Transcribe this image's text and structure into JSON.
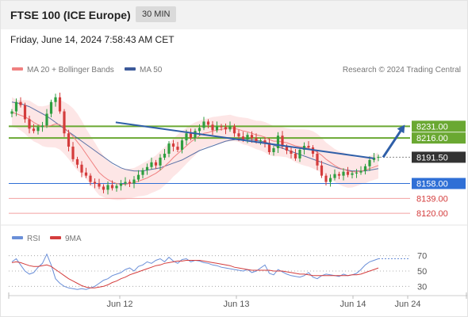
{
  "header": {
    "title": "FTSE 100 (ICE Europe)",
    "interval": "30 MIN"
  },
  "timestamp": "Friday, June 14, 2024 7:58:43 AM CET",
  "legend": {
    "ma20_label": "MA 20 + Bollinger Bands",
    "ma50_label": "MA 50",
    "credit": "Research © 2024 Trading Central",
    "rsi_label": "RSI",
    "ma9_label": "9MA"
  },
  "colors": {
    "price_up": "#2e9e3f",
    "price_down": "#d43c3c",
    "ma20": "#f08080",
    "ma50": "#3c5a9a",
    "bollinger_fill": "#fde2e2",
    "resistance": "#6aa832",
    "support": "#2f6fd6",
    "support_minor": "#f2a0a0",
    "current_price_bg": "#333333",
    "trend_arrow": "#2f5fa8",
    "rsi_line": "#6a8fd8",
    "rsi_ma": "#d43c3c"
  },
  "chart_data": [
    {
      "type": "line",
      "series_kind": "candlestick-price",
      "x_ticks": [
        "Jun 12",
        "Jun 13",
        "Jun 14",
        "Jun 24"
      ],
      "ylim": [
        8110,
        8290
      ],
      "levels": [
        {
          "value": 8231.0,
          "label": "8231.00",
          "kind": "resistance"
        },
        {
          "value": 8216.0,
          "label": "8216.00",
          "kind": "resistance"
        },
        {
          "value": 8191.5,
          "label": "8191.50",
          "kind": "current"
        },
        {
          "value": 8158.0,
          "label": "8158.00",
          "kind": "support"
        },
        {
          "value": 8139.0,
          "label": "8139.00",
          "kind": "support-minor"
        },
        {
          "value": 8120.0,
          "label": "8120.00",
          "kind": "support-minor"
        }
      ],
      "series": [
        {
          "name": "Price",
          "values": [
            8250,
            8262,
            8258,
            8240,
            8228,
            8225,
            8230,
            8232,
            8247,
            8262,
            8268,
            8250,
            8222,
            8205,
            8189,
            8182,
            8172,
            8168,
            8160,
            8158,
            8154,
            8150,
            8156,
            8152,
            8155,
            8158,
            8160,
            8158,
            8163,
            8169,
            8175,
            8179,
            8185,
            8181,
            8191,
            8196,
            8209,
            8205,
            8201,
            8213,
            8222,
            8216,
            8225,
            8229,
            8237,
            8233,
            8226,
            8231,
            8230,
            8227,
            8231,
            8222,
            8218,
            8214,
            8220,
            8216,
            8212,
            8213,
            8210,
            8198,
            8203,
            8219,
            8205,
            8200,
            8196,
            8190,
            8201,
            8206,
            8204,
            8196,
            8181,
            8168,
            8160,
            8165,
            8170,
            8168,
            8173,
            8169,
            8171,
            8172,
            8174,
            8180,
            8188,
            8191,
            8192
          ]
        },
        {
          "name": "MA 20",
          "values": [
            8249,
            8247,
            8245,
            8243,
            8240,
            8236,
            8233,
            8231,
            8231,
            8232,
            8234,
            8233,
            8229,
            8224,
            8218,
            8211,
            8204,
            8196,
            8188,
            8180,
            8172,
            8167,
            8163,
            8160,
            8158,
            8157,
            8157,
            8158,
            8159,
            8161,
            8163,
            8165,
            8168,
            8171,
            8175,
            8180,
            8185,
            8191,
            8196,
            8201,
            8206,
            8211,
            8215,
            8219,
            8222,
            8223,
            8225,
            8226,
            8227,
            8228,
            8229,
            8228,
            8227,
            8225,
            8224,
            8222,
            8220,
            8219,
            8217,
            8214,
            8212,
            8212,
            8211,
            8210,
            8208,
            8206,
            8205,
            8204,
            8203,
            8201,
            8198,
            8194,
            8189,
            8185,
            8181,
            8178,
            8176,
            8174,
            8173,
            8173,
            8174,
            8175,
            8177,
            8179,
            8181
          ]
        },
        {
          "name": "MA 50",
          "values": [
            8262,
            8261,
            8260,
            8258,
            8256,
            8253,
            8250,
            8247,
            8244,
            8240,
            8236,
            8232,
            8228,
            8224,
            8220,
            8216,
            8212,
            8208,
            8204,
            8200,
            8196,
            8192,
            8188,
            8184,
            8181,
            8178,
            8176,
            8175,
            8174,
            8174,
            8174,
            8175,
            8176,
            8177,
            8178,
            8180,
            8182,
            8184,
            8186,
            8188,
            8191,
            8194,
            8197,
            8200,
            8202,
            8204,
            8206,
            8208,
            8210,
            8212,
            8213,
            8214,
            8215,
            8215,
            8215,
            8214,
            8213,
            8212,
            8211,
            8209,
            8207,
            8205,
            8203,
            8201,
            8199,
            8197,
            8195,
            8193,
            8191,
            8189,
            8187,
            8185,
            8183,
            8181,
            8179,
            8177,
            8176,
            8175,
            8174,
            8174,
            8174,
            8174,
            8175,
            8176,
            8177
          ]
        }
      ],
      "trendline": {
        "from": 8236,
        "to": 8190
      },
      "projection": {
        "from": 8191.5,
        "to": 8231
      }
    },
    {
      "type": "line",
      "ylim": [
        20,
        80
      ],
      "y_ticks": [
        70,
        50,
        30
      ],
      "series": [
        {
          "name": "RSI",
          "values": [
            62,
            66,
            58,
            50,
            46,
            48,
            55,
            60,
            72,
            58,
            40,
            34,
            30,
            28,
            27,
            26,
            27,
            26,
            28,
            30,
            34,
            38,
            40,
            44,
            46,
            48,
            52,
            54,
            50,
            56,
            58,
            62,
            60,
            64,
            66,
            62,
            68,
            63,
            60,
            65,
            66,
            62,
            64,
            63,
            61,
            60,
            58,
            57,
            55,
            54,
            53,
            52,
            51,
            50,
            52,
            48,
            50,
            54,
            58,
            47,
            45,
            52,
            49,
            46,
            44,
            43,
            42,
            44,
            48,
            42,
            40,
            44,
            46,
            45,
            44,
            43,
            46,
            44,
            45,
            47,
            52,
            58,
            62,
            64,
            66
          ]
        },
        {
          "name": "9MA",
          "values": [
            61,
            62,
            61,
            59,
            57,
            56,
            56,
            57,
            58,
            56,
            52,
            48,
            44,
            40,
            37,
            34,
            31,
            29,
            28,
            28,
            29,
            30,
            32,
            35,
            37,
            40,
            42,
            45,
            47,
            49,
            51,
            53,
            55,
            57,
            58,
            60,
            61,
            62,
            63,
            63,
            64,
            64,
            64,
            64,
            63,
            62,
            61,
            60,
            59,
            58,
            57,
            55,
            54,
            53,
            52,
            51,
            51,
            51,
            51,
            51,
            50,
            50,
            50,
            49,
            48,
            47,
            46,
            46,
            45,
            44,
            44,
            44,
            44,
            44,
            44,
            44,
            44,
            44,
            45,
            45,
            46,
            48,
            50,
            52,
            54
          ]
        }
      ]
    }
  ]
}
